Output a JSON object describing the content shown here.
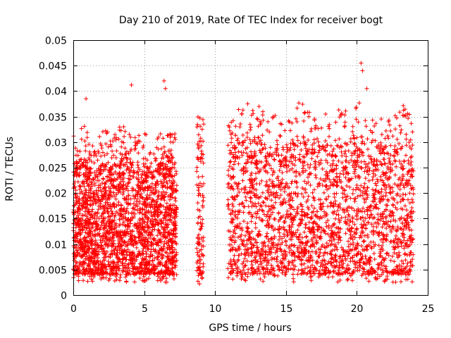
{
  "chart_data": {
    "type": "scatter",
    "title": "Day 210 of 2019, Rate Of TEC Index for receiver bogt",
    "xlabel": "GPS time / hours",
    "ylabel": "ROTI / TECUs",
    "xlim": [
      0,
      25
    ],
    "ylim": [
      0,
      0.05
    ],
    "grid": true,
    "marker": "+",
    "color": "#ff0000",
    "x_ticks": [
      "0",
      "5",
      "10",
      "15",
      "20",
      "25"
    ],
    "y_ticks": [
      "0",
      "0.005",
      "0.01",
      "0.015",
      "0.02",
      "0.025",
      "0.03",
      "0.035",
      "0.04",
      "0.045",
      "0.05"
    ],
    "series": [
      {
        "name": "ROTI",
        "segments": [
          {
            "x_range": [
              0.0,
              7.3
            ],
            "typical_range": [
              0.004,
              0.024
            ]
          },
          {
            "x_range": [
              8.7,
              9.2
            ],
            "typical_range": [
              0.004,
              0.028
            ]
          },
          {
            "x_range": [
              10.9,
              24.0
            ],
            "typical_range": [
              0.004,
              0.028
            ]
          }
        ],
        "notable_points": [
          {
            "x": 0.9,
            "y": 0.0385
          },
          {
            "x": 4.1,
            "y": 0.0412
          },
          {
            "x": 6.4,
            "y": 0.042
          },
          {
            "x": 6.5,
            "y": 0.0405
          },
          {
            "x": 12.3,
            "y": 0.0375
          },
          {
            "x": 13.1,
            "y": 0.037
          },
          {
            "x": 17.8,
            "y": 0.0355
          },
          {
            "x": 20.3,
            "y": 0.0455
          },
          {
            "x": 20.4,
            "y": 0.044
          },
          {
            "x": 20.7,
            "y": 0.0405
          },
          {
            "x": 8.9,
            "y": 0.0022
          },
          {
            "x": 8.85,
            "y": 0.029
          }
        ]
      }
    ]
  }
}
